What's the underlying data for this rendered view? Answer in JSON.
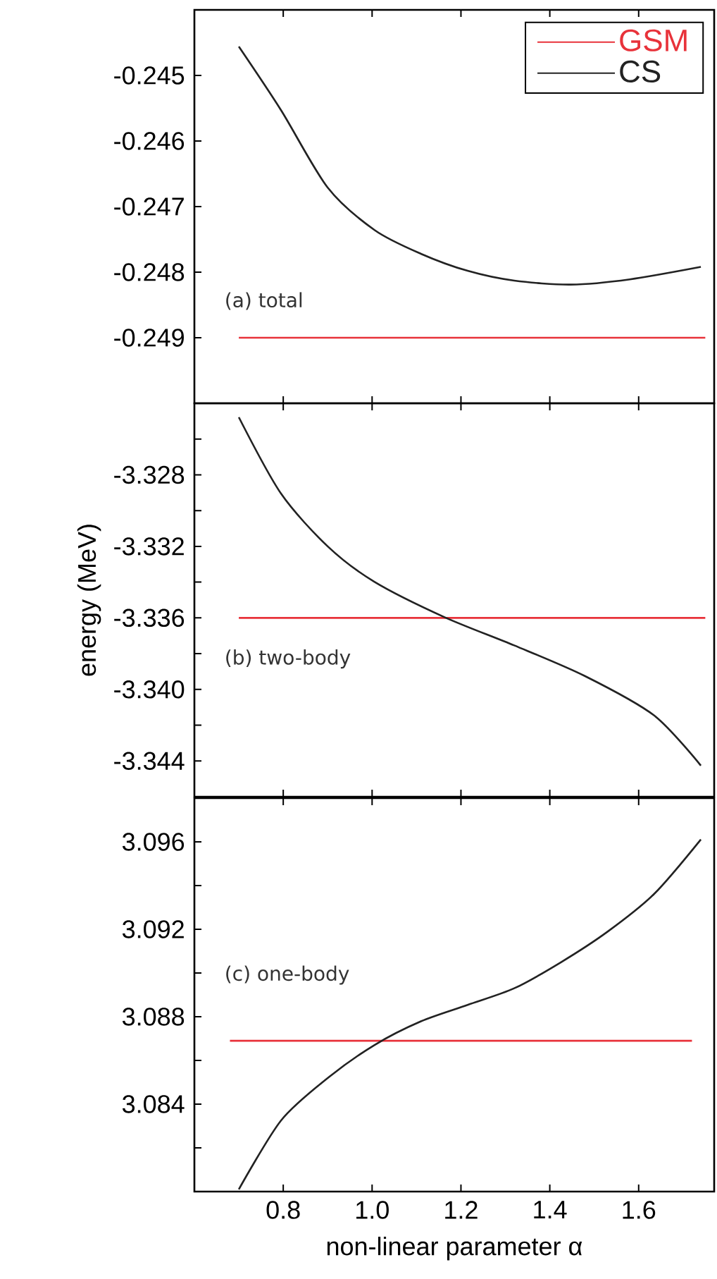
{
  "chart_data": [
    {
      "type": "line",
      "ylim": [
        -0.25,
        -0.244
      ],
      "xlim": [
        0.6,
        1.77
      ],
      "xticks": [
        0.8,
        1,
        1.2,
        1.4,
        1.6
      ],
      "yticks": [
        -0.245,
        -0.246,
        -0.247,
        -0.248,
        -0.249
      ],
      "tick_labels": "y",
      "legend": "top right",
      "annotations": [
        "(a) total"
      ],
      "series": [
        {
          "name": "GSM",
          "color": "#e8323a",
          "x": [
            0.7,
            1.75
          ],
          "values": [
            -0.249,
            -0.249
          ]
        },
        {
          "name": "CS",
          "color": "#222222",
          "x": [
            0.7,
            0.795,
            0.9,
            1.006,
            1.11,
            1.215,
            1.32,
            1.447,
            1.58,
            1.74
          ],
          "values": [
            -0.24456,
            -0.24553,
            -0.24671,
            -0.24736,
            -0.24772,
            -0.24798,
            -0.24813,
            -0.24819,
            -0.24811,
            -0.24792
          ]
        }
      ]
    },
    {
      "type": "line",
      "ylim": [
        -3.346,
        -3.324
      ],
      "xlim": [
        0.6,
        1.77
      ],
      "ylabel": "energy (MeV)",
      "xticks": [
        0.8,
        1,
        1.2,
        1.4,
        1.6
      ],
      "yticks": [
        -3.328,
        -3.332,
        -3.336,
        {
          "value": -3.34,
          "label": "-3.340"
        },
        -3.344,
        {
          "value": -3.326,
          "label": null
        },
        {
          "value": -3.33,
          "label": null
        },
        {
          "value": -3.334,
          "label": null
        },
        {
          "value": -3.338,
          "label": null
        },
        {
          "value": -3.342,
          "label": null
        }
      ],
      "tick_labels": "y",
      "annotations": [
        "(b) two-body"
      ],
      "series": [
        {
          "color": "#e8323a",
          "x": [
            0.7,
            1.75
          ],
          "values": [
            -3.336,
            -3.336
          ]
        },
        {
          "color": "#222222",
          "x": [
            0.7,
            0.795,
            0.9,
            1.005,
            1.163,
            1.32,
            1.478,
            1.635,
            1.74
          ],
          "values": [
            -3.32478,
            -3.32905,
            -3.332,
            -3.33398,
            -3.33596,
            -3.33754,
            -3.33924,
            -3.34146,
            -3.34426
          ]
        }
      ]
    },
    {
      "type": "line",
      "ylim": [
        3.08,
        3.098
      ],
      "xlim": [
        0.6,
        1.77
      ],
      "xlabel": "non-linear parameter α",
      "xticks": [
        0.8,
        {
          "value": 1.0,
          "label": "1.0"
        },
        1.2,
        1.4,
        1.6
      ],
      "yticks": [
        3.096,
        3.092,
        3.088,
        3.084,
        {
          "value": 3.094,
          "label": null
        },
        {
          "value": 3.09,
          "label": null
        },
        {
          "value": 3.086,
          "label": null
        },
        {
          "value": 3.082,
          "label": null
        }
      ],
      "annotations": [
        "(c) one-body"
      ],
      "series": [
        {
          "color": "#e8323a",
          "x": [
            0.68,
            1.72
          ],
          "values": [
            3.0869,
            3.0869
          ]
        },
        {
          "color": "#222222",
          "x": [
            0.7,
            0.795,
            0.9,
            1.005,
            1.11,
            1.215,
            1.32,
            1.425,
            1.53,
            1.635,
            1.74
          ],
          "values": [
            3.0801,
            3.08325,
            3.08519,
            3.0867,
            3.08779,
            3.08854,
            3.0893,
            3.09049,
            3.09189,
            3.09362,
            3.09611
          ]
        }
      ]
    }
  ]
}
